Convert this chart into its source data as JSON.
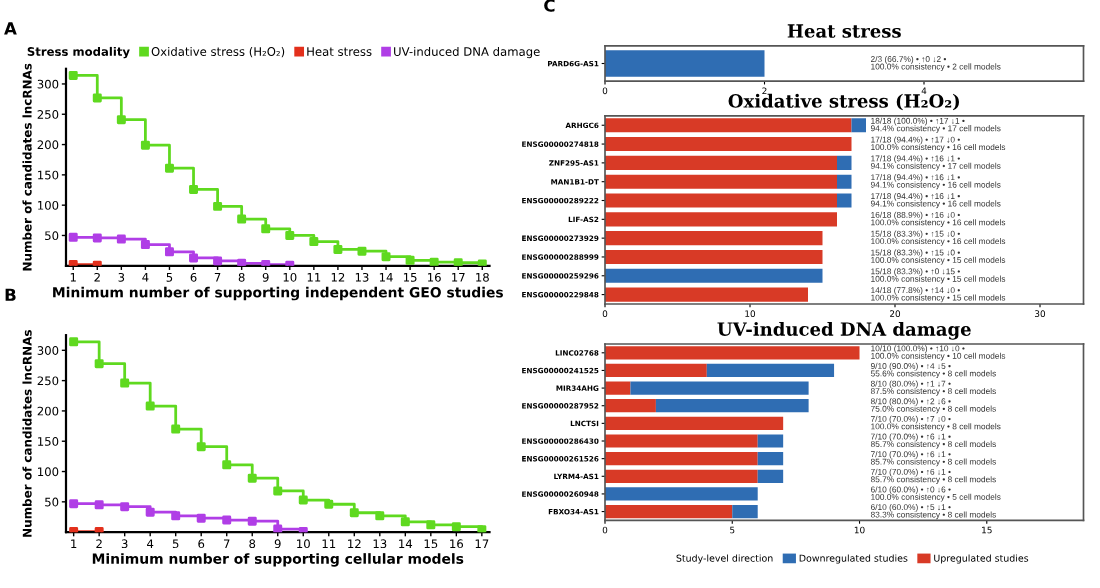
{
  "chart_data": [
    {
      "type": "step",
      "annotations": [
        "A"
      ],
      "xlabel": "Minimum number of supporting independent GEO studies",
      "ylabel": "Number of candidates lncRNAs",
      "legend_title": "Stress modality",
      "legend": "top",
      "marker": "square",
      "xlim": [
        0.7,
        18.3
      ],
      "xticks": [
        1,
        2,
        3,
        4,
        5,
        6,
        7,
        8,
        9,
        10,
        11,
        12,
        13,
        14,
        15,
        16,
        17,
        18
      ],
      "ylim": [
        0,
        325
      ],
      "yticks": [
        50,
        100,
        150,
        200,
        250,
        300
      ],
      "series": [
        {
          "name": "Oxidative stress (H₂O₂)",
          "color": "#5fd91f",
          "x": [
            1,
            2,
            3,
            4,
            5,
            6,
            7,
            8,
            9,
            10,
            11,
            12,
            13,
            14,
            15,
            16,
            17,
            18
          ],
          "values": [
            314,
            277,
            241,
            199,
            161,
            126,
            98,
            77,
            61,
            50,
            40,
            27,
            24,
            15,
            9,
            6,
            5,
            3
          ]
        },
        {
          "name": "Heat stress",
          "color": "#e3301c",
          "x": [
            1,
            2
          ],
          "values": [
            2,
            1
          ]
        },
        {
          "name": "UV-induced DNA damage",
          "color": "#b03ee6",
          "x": [
            1,
            2,
            3,
            4,
            5,
            6,
            7,
            8,
            9,
            10
          ],
          "values": [
            47,
            46,
            44,
            35,
            23,
            13,
            8,
            4,
            2,
            1
          ]
        }
      ]
    },
    {
      "type": "step",
      "annotations": [
        "B"
      ],
      "xlabel": "Minimum number of supporting cellular models",
      "ylabel": "Number of candidates lncRNAs",
      "marker": "square",
      "xlim": [
        0.7,
        17.3
      ],
      "xticks": [
        1,
        2,
        3,
        4,
        5,
        6,
        7,
        8,
        9,
        10,
        11,
        12,
        13,
        14,
        15,
        16,
        17
      ],
      "ylim": [
        0,
        325
      ],
      "yticks": [
        50,
        100,
        150,
        200,
        250,
        300
      ],
      "series": [
        {
          "color": "#5fd91f",
          "x": [
            1,
            2,
            3,
            4,
            5,
            6,
            7,
            8,
            9,
            10,
            11,
            12,
            13,
            14,
            15,
            16,
            17
          ],
          "values": [
            314,
            278,
            246,
            208,
            170,
            141,
            111,
            89,
            68,
            53,
            46,
            32,
            27,
            17,
            12,
            9,
            4
          ]
        },
        {
          "color": "#e3301c",
          "x": [
            1,
            2
          ],
          "values": [
            1,
            1
          ]
        },
        {
          "color": "#b03ee6",
          "x": [
            1,
            2,
            3,
            4,
            5,
            6,
            7,
            8,
            9,
            10
          ],
          "values": [
            47,
            45,
            42,
            33,
            27,
            23,
            20,
            18,
            5,
            1
          ]
        }
      ]
    },
    {
      "type": "bar",
      "orientation": "horizontal",
      "stacked": true,
      "title": "Heat stress",
      "categories": [
        "PARD6G-AS1"
      ],
      "xlim": [
        0,
        6
      ],
      "xticks": [
        0,
        2,
        4
      ],
      "series": [
        {
          "color": "#d83a26",
          "values": [
            0
          ]
        },
        {
          "color": "#2f6db3",
          "values": [
            2
          ]
        }
      ],
      "annotations": [
        "C",
        "2/3 (66.7%) • ↑0 ↓2 • 100.0% consistency • 2 cell models"
      ]
    },
    {
      "type": "bar",
      "orientation": "horizontal",
      "stacked": true,
      "title": "Oxidative stress (H₂O₂)",
      "categories": [
        "ARHGC6",
        "ENSG00000274818",
        "ZNF295-AS1",
        "MAN1B1-DT",
        "ENSG00000289222",
        "LIF-AS2",
        "ENSG00000273929",
        "ENSG00000288999",
        "ENSG00000259296",
        "ENSG00000229848"
      ],
      "xlim": [
        0,
        33
      ],
      "xticks": [
        0,
        10,
        20,
        30
      ],
      "series": [
        {
          "color": "#d83a26",
          "values": [
            17,
            17,
            16,
            16,
            16,
            16,
            15,
            15,
            0,
            14
          ]
        },
        {
          "color": "#2f6db3",
          "values": [
            1,
            0,
            1,
            1,
            1,
            0,
            0,
            0,
            15,
            0
          ]
        }
      ],
      "annotations": [
        "18/18 (100.0%) • ↑17 ↓1 • 94.4% consistency • 17 cell models",
        "17/18 (94.4%) • ↑17 ↓0 • 100.0% consistency • 16 cell models",
        "17/18 (94.4%) • ↑16 ↓1 • 94.1% consistency • 17 cell models",
        "17/18 (94.4%) • ↑16 ↓1 • 94.1% consistency • 16 cell models",
        "17/18 (94.4%) • ↑16 ↓1 • 94.1% consistency • 16 cell models",
        "16/18 (88.9%) • ↑16 ↓0 • 100.0% consistency • 16 cell models",
        "15/18 (83.3%) • ↑15 ↓0 • 100.0% consistency • 16 cell models",
        "15/18 (83.3%) • ↑15 ↓0 • 100.0% consistency • 15 cell models",
        "15/18 (83.3%) • ↑0 ↓15 • 100.0% consistency • 15 cell models",
        "14/18 (77.8%) • ↑14 ↓0 • 100.0% consistency • 15 cell models"
      ]
    },
    {
      "type": "bar",
      "orientation": "horizontal",
      "stacked": true,
      "title": "UV-induced DNA damage",
      "categories": [
        "LINC02768",
        "ENSG00000241525",
        "MIR34AHG",
        "ENSG00000287952",
        "LNCTSI",
        "ENSG00000286430",
        "ENSG00000261526",
        "LYRM4-AS1",
        "ENSG00000260948",
        "FBXO34-AS1"
      ],
      "xlim": [
        0,
        18.8
      ],
      "xticks": [
        0,
        5,
        10,
        15
      ],
      "legend": "bottom",
      "legend_title": "Study-level direction",
      "series": [
        {
          "name": "Upregulated studies",
          "color": "#d83a26",
          "values": [
            10,
            4,
            1,
            2,
            7,
            6,
            6,
            6,
            0,
            5
          ]
        },
        {
          "name": "Downregulated studies",
          "color": "#2f6db3",
          "values": [
            0,
            5,
            7,
            6,
            0,
            1,
            1,
            1,
            6,
            1
          ]
        }
      ],
      "annotations": [
        "10/10 (100.0%) • ↑10 ↓0 • 100.0% consistency • 10 cell models",
        "9/10 (90.0%) • ↑4 ↓5 • 55.6% consistency • 8 cell models",
        "8/10 (80.0%) • ↑1 ↓7 • 87.5% consistency • 8 cell models",
        "8/10 (80.0%) • ↑2 ↓6 • 75.0% consistency • 8 cell models",
        "7/10 (70.0%) • ↑7 ↓0 • 100.0% consistency • 8 cell models",
        "7/10 (70.0%) • ↑6 ↓1 • 85.7% consistency • 8 cell models",
        "7/10 (70.0%) • ↑6 ↓1 • 85.7% consistency • 8 cell models",
        "7/10 (70.0%) • ↑6 ↓1 • 85.7% consistency • 8 cell models",
        "6/10 (60.0%) • ↑0 ↓6 • 100.0% consistency • 5 cell models",
        "6/10 (60.0%) • ↑5 ↓1 • 83.3% consistency • 8 cell models"
      ]
    }
  ]
}
